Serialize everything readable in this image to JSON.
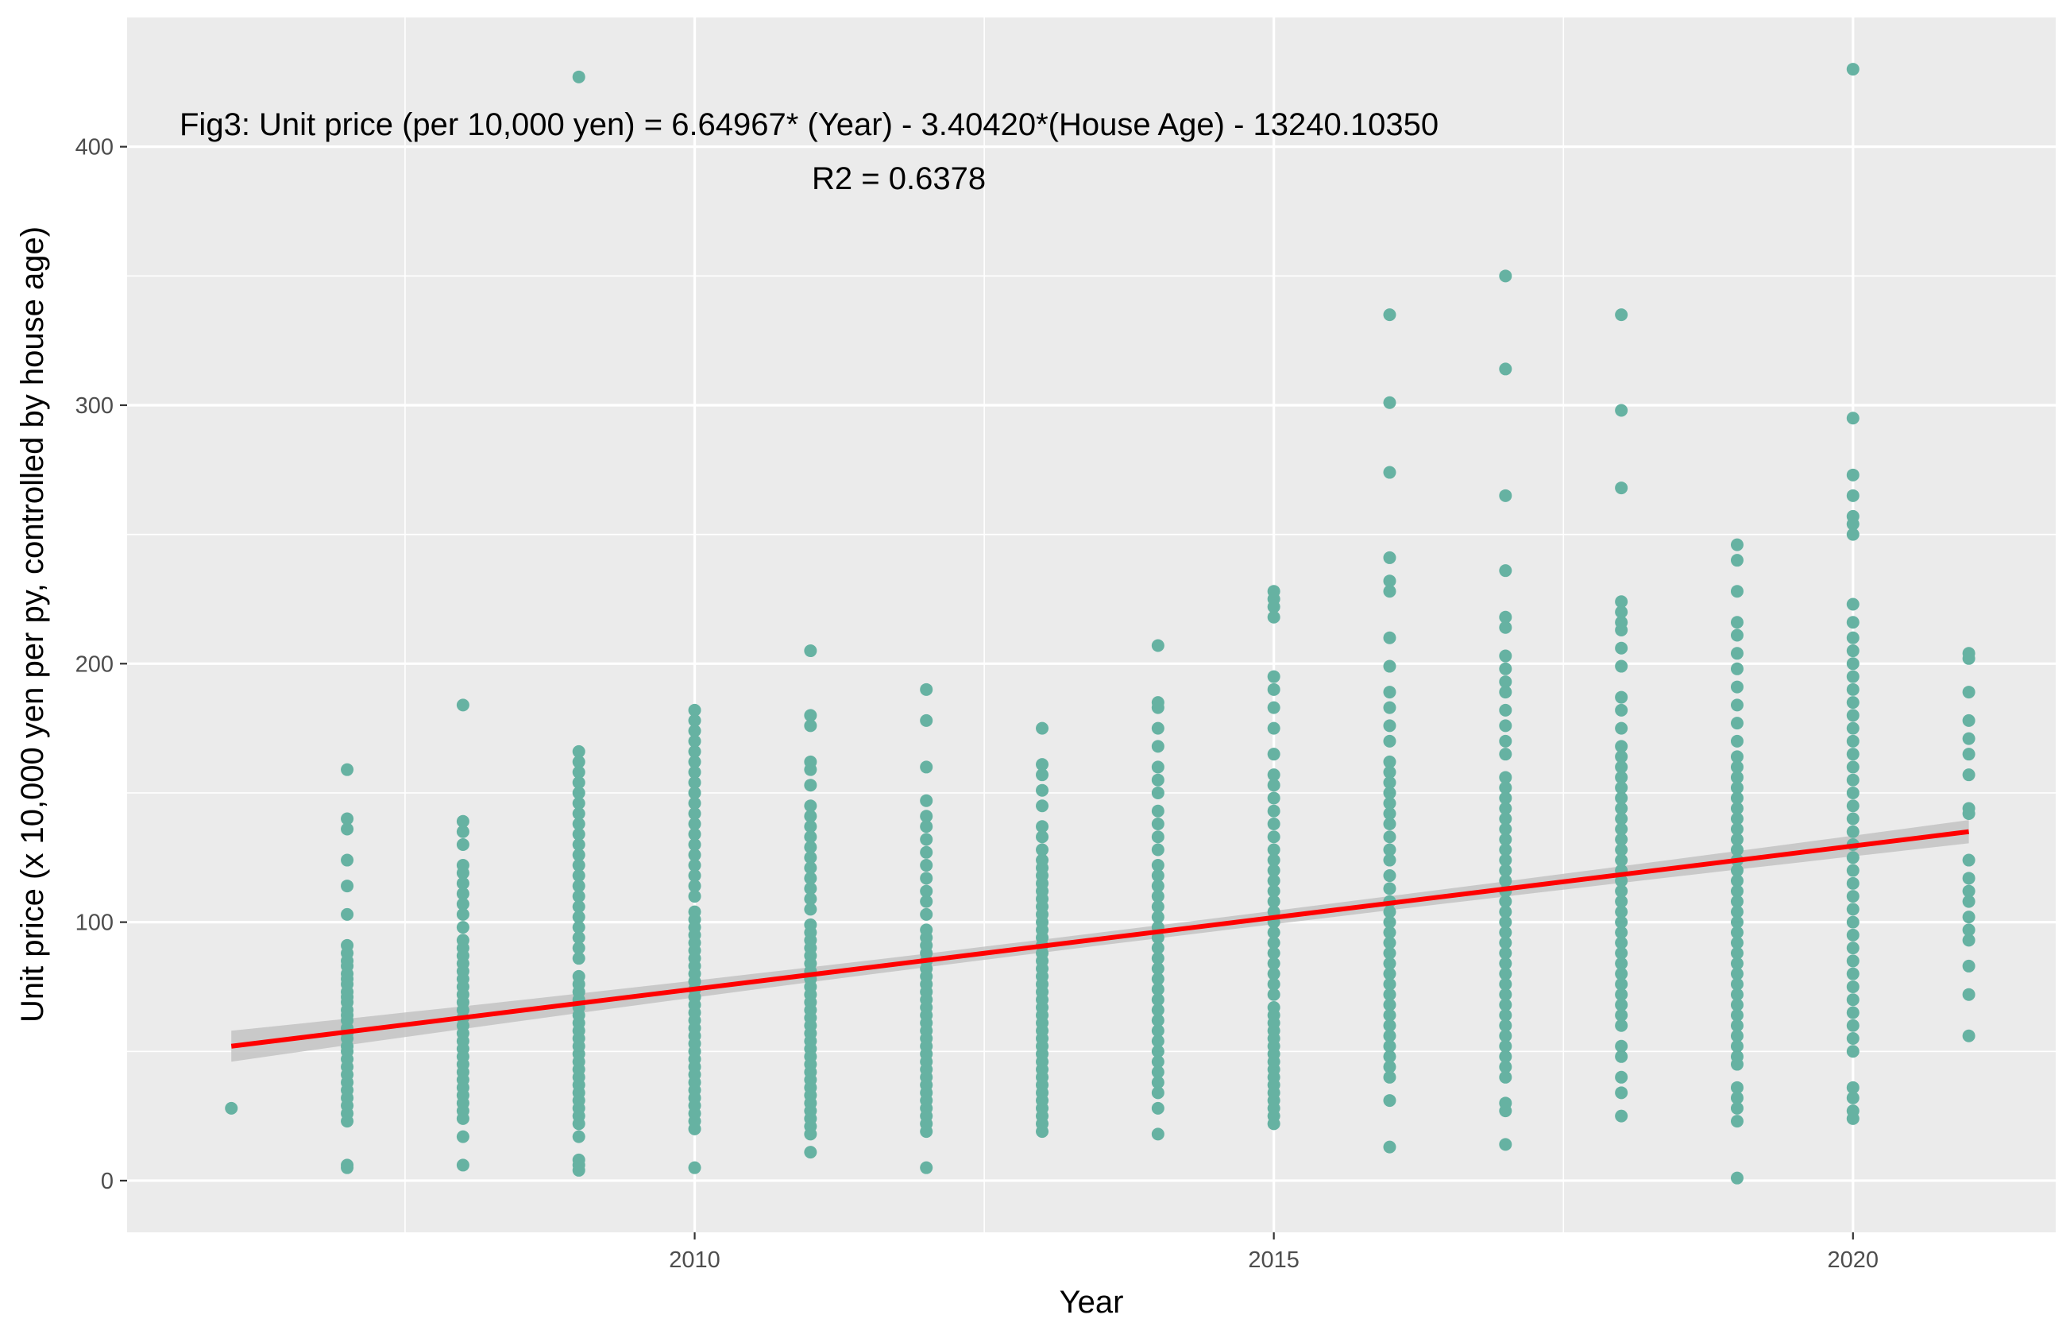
{
  "chart_data": {
    "type": "scatter",
    "title": "",
    "xlabel": "Year",
    "ylabel": "Unit price (x 10,000 yen per py, controlled by house age)",
    "xlim": [
      2005.1,
      2021.75
    ],
    "ylim": [
      -20,
      450
    ],
    "x_ticks": [
      2010,
      2015,
      2020
    ],
    "x_tick_labels": [
      "2010",
      "2015",
      "2020"
    ],
    "y_ticks": [
      0,
      100,
      200,
      300,
      400
    ],
    "y_tick_labels": [
      "0",
      "100",
      "200",
      "300",
      "400"
    ],
    "grid": true,
    "background": "#ebebeb",
    "point_color": "#66b2a2",
    "line_color": "#ff0000",
    "band_color": "#bdbdbd",
    "annotations": [
      "Fig3: Unit price (per 10,000 yen) = 6.64967* (Year) - 3.40420*(House Age) - 13240.10350",
      "R2 = 0.6378"
    ],
    "regression": {
      "x": [
        2006,
        2021
      ],
      "y": [
        52,
        135
      ],
      "band_halfwidth": [
        6,
        2.5,
        4.5
      ]
    },
    "series": [
      {
        "values_by_year": [
          {
            "x": 2006,
            "y": [
              28
            ]
          },
          {
            "x": 2007,
            "y": [
              5,
              6,
              23,
              26,
              29,
              32,
              35,
              38,
              41,
              44,
              47,
              50,
              52,
              55,
              57,
              59,
              62,
              64,
              66,
              69,
              71,
              73,
              76,
              78,
              80,
              83,
              85,
              88,
              91,
              103,
              114,
              124,
              136,
              140,
              159
            ]
          },
          {
            "x": 2008,
            "y": [
              6,
              17,
              24,
              27,
              30,
              33,
              36,
              39,
              42,
              45,
              48,
              51,
              54,
              57,
              60,
              63,
              66,
              69,
              72,
              75,
              78,
              81,
              84,
              87,
              90,
              93,
              98,
              103,
              107,
              111,
              115,
              119,
              122,
              130,
              135,
              139,
              184
            ]
          },
          {
            "x": 2009,
            "y": [
              4,
              6,
              8,
              17,
              22,
              25,
              28,
              31,
              34,
              37,
              40,
              43,
              46,
              49,
              52,
              55,
              58,
              61,
              64,
              67,
              70,
              73,
              76,
              79,
              86,
              90,
              94,
              98,
              102,
              106,
              110,
              114,
              118,
              122,
              126,
              130,
              134,
              138,
              142,
              146,
              150,
              154,
              158,
              162,
              166,
              427
            ]
          },
          {
            "x": 2010,
            "y": [
              5,
              20,
              23,
              26,
              29,
              32,
              35,
              38,
              41,
              44,
              47,
              50,
              53,
              56,
              59,
              62,
              65,
              68,
              71,
              74,
              77,
              80,
              83,
              86,
              89,
              92,
              95,
              98,
              101,
              104,
              110,
              114,
              118,
              122,
              126,
              130,
              134,
              138,
              142,
              146,
              150,
              154,
              158,
              162,
              166,
              170,
              174,
              178,
              182
            ]
          },
          {
            "x": 2011,
            "y": [
              11,
              18,
              21,
              24,
              27,
              30,
              33,
              36,
              39,
              42,
              45,
              48,
              51,
              54,
              57,
              60,
              63,
              66,
              69,
              72,
              75,
              78,
              81,
              84,
              87,
              90,
              93,
              96,
              99,
              105,
              109,
              113,
              117,
              121,
              125,
              129,
              133,
              137,
              141,
              145,
              153,
              159,
              162,
              176,
              180,
              205
            ]
          },
          {
            "x": 2012,
            "y": [
              5,
              19,
              22,
              25,
              28,
              31,
              34,
              37,
              40,
              43,
              46,
              49,
              52,
              55,
              58,
              61,
              64,
              67,
              70,
              73,
              76,
              79,
              82,
              85,
              88,
              91,
              94,
              97,
              103,
              108,
              112,
              117,
              122,
              127,
              132,
              137,
              141,
              147,
              160,
              178,
              190
            ]
          },
          {
            "x": 2013,
            "y": [
              19,
              22,
              25,
              28,
              31,
              34,
              37,
              40,
              43,
              46,
              49,
              52,
              55,
              58,
              61,
              64,
              67,
              70,
              73,
              76,
              79,
              82,
              85,
              88,
              91,
              94,
              97,
              100,
              103,
              106,
              109,
              112,
              115,
              118,
              121,
              124,
              128,
              133,
              137,
              145,
              151,
              157,
              161,
              175
            ]
          },
          {
            "x": 2014,
            "y": [
              18,
              28,
              34,
              38,
              42,
              46,
              50,
              54,
              58,
              62,
              66,
              70,
              74,
              78,
              82,
              86,
              90,
              94,
              98,
              102,
              106,
              110,
              114,
              118,
              122,
              128,
              133,
              138,
              143,
              150,
              155,
              160,
              168,
              175,
              183,
              185,
              207
            ]
          },
          {
            "x": 2015,
            "y": [
              22,
              25,
              28,
              31,
              34,
              37,
              40,
              43,
              46,
              49,
              52,
              55,
              58,
              61,
              64,
              67,
              72,
              76,
              80,
              84,
              88,
              92,
              96,
              100,
              104,
              108,
              112,
              116,
              120,
              124,
              128,
              133,
              138,
              143,
              148,
              153,
              157,
              165,
              175,
              183,
              190,
              195,
              218,
              222,
              225,
              228
            ]
          },
          {
            "x": 2016,
            "y": [
              13,
              31,
              40,
              44,
              48,
              52,
              56,
              60,
              64,
              68,
              72,
              76,
              80,
              84,
              88,
              92,
              96,
              100,
              104,
              108,
              113,
              118,
              124,
              128,
              133,
              138,
              142,
              146,
              150,
              154,
              158,
              162,
              170,
              176,
              183,
              189,
              199,
              210,
              228,
              232,
              241,
              274,
              301,
              335
            ]
          },
          {
            "x": 2017,
            "y": [
              14,
              27,
              30,
              40,
              44,
              48,
              52,
              56,
              60,
              64,
              68,
              72,
              76,
              80,
              84,
              88,
              92,
              96,
              100,
              104,
              108,
              112,
              116,
              120,
              124,
              128,
              132,
              136,
              140,
              144,
              148,
              152,
              156,
              165,
              170,
              176,
              182,
              189,
              193,
              198,
              203,
              214,
              218,
              236,
              265,
              314,
              350
            ]
          },
          {
            "x": 2018,
            "y": [
              25,
              34,
              40,
              48,
              52,
              60,
              64,
              68,
              72,
              76,
              80,
              84,
              88,
              92,
              96,
              100,
              104,
              108,
              112,
              116,
              120,
              124,
              128,
              132,
              136,
              140,
              144,
              148,
              152,
              156,
              160,
              164,
              168,
              175,
              182,
              187,
              199,
              206,
              213,
              216,
              220,
              224,
              268,
              298,
              335
            ]
          },
          {
            "x": 2019,
            "y": [
              1,
              23,
              28,
              32,
              36,
              45,
              48,
              52,
              56,
              60,
              64,
              68,
              72,
              76,
              80,
              84,
              88,
              92,
              96,
              100,
              104,
              108,
              112,
              116,
              120,
              124,
              128,
              132,
              136,
              140,
              144,
              148,
              152,
              156,
              160,
              164,
              170,
              177,
              184,
              191,
              198,
              204,
              211,
              216,
              228,
              240,
              246
            ]
          },
          {
            "x": 2020,
            "y": [
              24,
              27,
              32,
              36,
              50,
              55,
              60,
              65,
              70,
              75,
              80,
              85,
              90,
              95,
              100,
              105,
              110,
              115,
              120,
              125,
              130,
              135,
              140,
              145,
              150,
              155,
              160,
              165,
              170,
              175,
              180,
              185,
              190,
              195,
              200,
              205,
              210,
              216,
              223,
              250,
              254,
              257,
              265,
              273,
              295,
              430
            ]
          },
          {
            "x": 2021,
            "y": [
              56,
              72,
              83,
              93,
              97,
              102,
              108,
              112,
              117,
              124,
              142,
              144,
              157,
              165,
              171,
              178,
              189,
              202,
              204
            ]
          }
        ]
      }
    ]
  }
}
